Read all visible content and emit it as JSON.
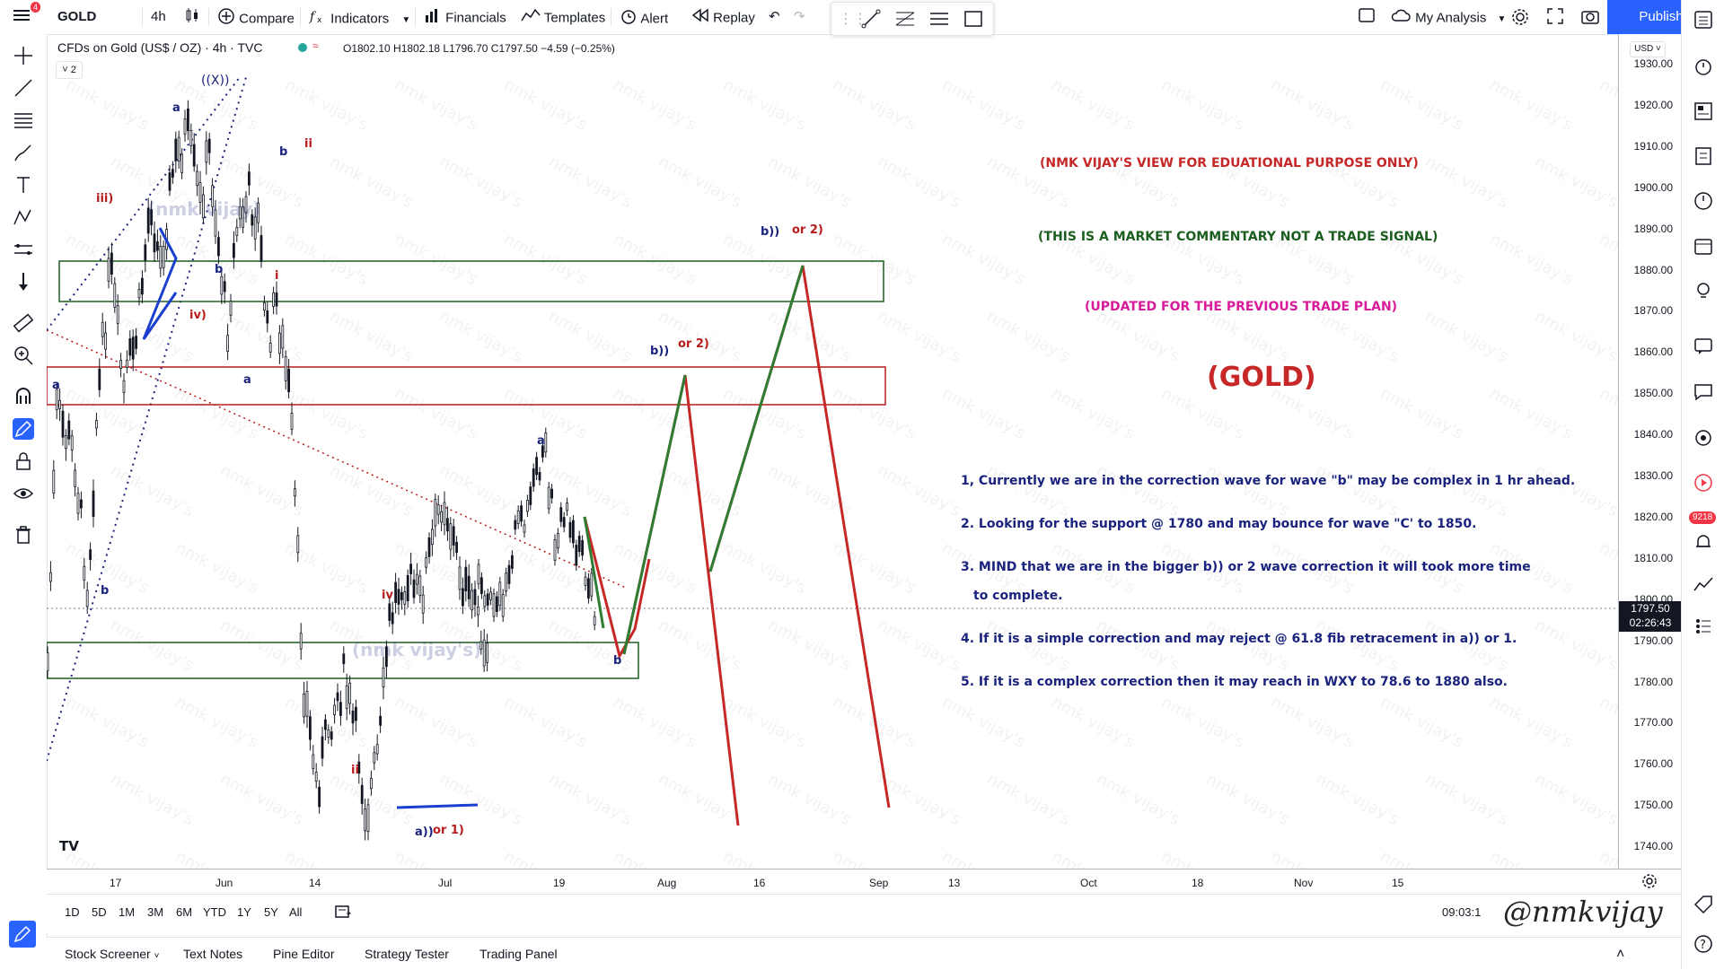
{
  "toolbar": {
    "menu_badge": "4",
    "symbol": "GOLD",
    "interval": "4h",
    "compare": "Compare",
    "indicators": "Indicators",
    "financials": "Financials",
    "templates": "Templates",
    "alert": "Alert",
    "replay": "Replay",
    "layout_name": "My Analysis",
    "publish": "Publish"
  },
  "chart_header": {
    "title": "CFDs on Gold (US$ / OZ) · 4h · TVC",
    "ohlc": "O1802.10 H1802.18 L1796.70 C1797.50 −4.59 (−0.25%)",
    "collapse_count": "2",
    "currency": "USD"
  },
  "price_axis": {
    "ticks": [
      "1930.00",
      "1920.00",
      "1910.00",
      "1900.00",
      "1890.00",
      "1880.00",
      "1870.00",
      "1860.00",
      "1850.00",
      "1840.00",
      "1830.00",
      "1820.00",
      "1810.00",
      "1800.00",
      "1790.00",
      "1780.00",
      "1770.00",
      "1760.00",
      "1750.00",
      "1740.00"
    ],
    "last_price": "1797.50",
    "countdown": "02:26:43"
  },
  "time_axis": {
    "ticks": [
      "17",
      "Jun",
      "14",
      "Jul",
      "19",
      "Aug",
      "16",
      "Sep",
      "13",
      "Oct",
      "18",
      "Nov",
      "15"
    ]
  },
  "ranges": [
    "1D",
    "5D",
    "1M",
    "3M",
    "6M",
    "YTD",
    "1Y",
    "5Y",
    "All"
  ],
  "clock": "09:03:1",
  "panels": [
    "Stock Screener",
    "Text Notes",
    "Pine Editor",
    "Strategy Tester",
    "Trading Panel"
  ],
  "right_badge": "9218",
  "commentary": {
    "line1": "(NMK VIJAY'S VIEW FOR EDUATIONAL PURPOSE ONLY)",
    "line2": "(THIS IS A MARKET COMMENTARY NOT A TRADE SIGNAL)",
    "line3": "(UPDATED FOR THE PREVIOUS TRADE PLAN)",
    "symbol_title": "(GOLD)",
    "points": [
      "1, Currently we are in the correction wave for wave \"b\" may be complex in 1 hr ahead.",
      "2. Looking for the support @ 1780 and may bounce for wave \"C' to 1850.",
      "3. MIND that we are in the bigger b)) or 2 wave correction it will took more time",
      "to complete.",
      "4. If it is a simple correction and may reject @ 61.8 fib retracement in a)) or 1.",
      "5. If it is a complex correction then it may reach in WXY to 78.6 to 1880 also."
    ],
    "colors": {
      "red": "#c62828",
      "green": "#1b5e20",
      "magenta": "#d81b9a",
      "blue": "#1a237e",
      "dark_red": "#b71c1c"
    }
  },
  "wave_labels": {
    "xx": "((X))",
    "a_top": "a",
    "iii": "iii)",
    "b_left": "b",
    "iv": "iv)",
    "i": "i",
    "b_top": "b",
    "ii_top": "ii",
    "a_low": "a",
    "a_left": "a",
    "b_low": "b",
    "iv_mid": "iv",
    "ii_low": "ii",
    "a1": "a))",
    "or1": "or 1)",
    "a_mid": "a",
    "b_mid": "b",
    "b2_mid": "b))",
    "or2_mid": "or 2)",
    "b2_top": "b))",
    "or2_top": "or 2)",
    "wm1": "(nmk vijay)",
    "wm2": "(nmk vijay's)"
  },
  "watermark": "nmk vijay's",
  "signature": "@nmkvijay"
}
